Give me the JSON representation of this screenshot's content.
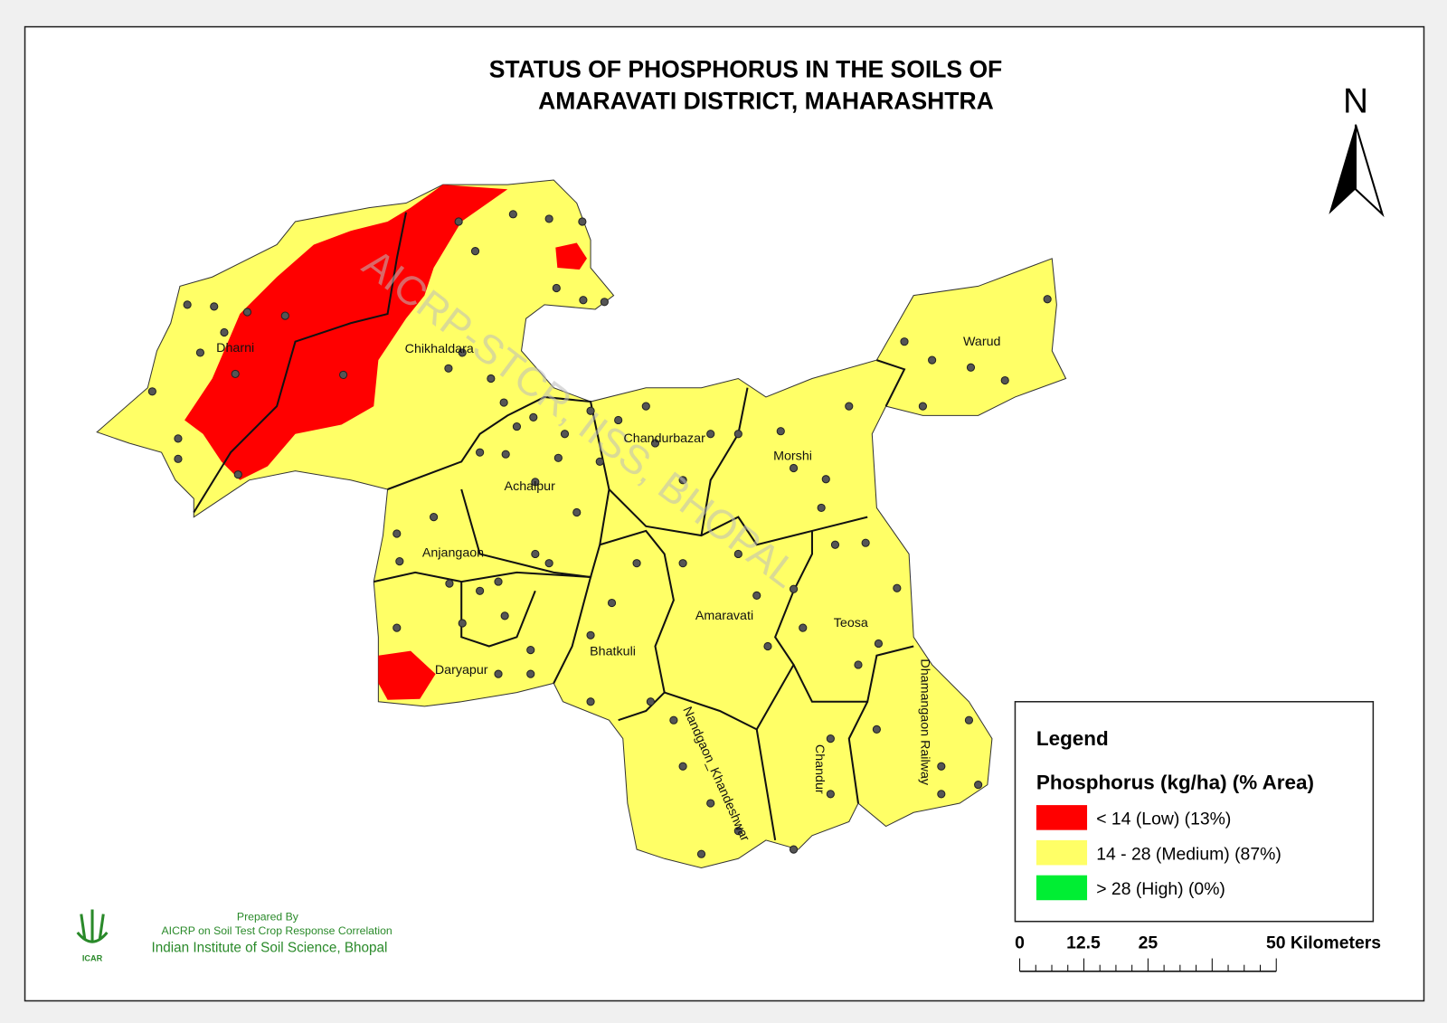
{
  "title": {
    "line1": "STATUS OF PHOSPHORUS  IN THE SOILS OF",
    "line2": "AMARAVATI   DISTRICT, MAHARASHTRA"
  },
  "north": "N",
  "watermark": "AICRP-STCR, IISS, BHOPAL",
  "districts": [
    "Dharni",
    "Chikhaldara",
    "Warud",
    "Chandurbazar",
    "Morshi",
    "Achalpur",
    "Anjangaon",
    "Amaravati",
    "Teosa",
    "Bhatkuli",
    "Daryapur",
    "Nandgaon_Khandeshwar",
    "Chandur",
    "Dhamangaon Railway"
  ],
  "legend": {
    "title": "Legend",
    "subtitle": "Phosphorus (kg/ha) (% Area)",
    "items": [
      {
        "label": "<  14 (Low) (13%)",
        "color": "#ff0000"
      },
      {
        "label": "14 - 28 (Medium) (87%)",
        "color": "#ffff66"
      },
      {
        "label": "> 28 (High) (0%)",
        "color": "#00ee33"
      }
    ]
  },
  "scale_bar": {
    "labels": [
      "0",
      "12.5",
      "25",
      "50 Kilometers"
    ]
  },
  "credit": {
    "line1": "Prepared By",
    "line2": "AICRP on Soil Test Crop Response Correlation",
    "line3": "Indian Institute of Soil Science, Bhopal",
    "logo": "ICAR"
  }
}
